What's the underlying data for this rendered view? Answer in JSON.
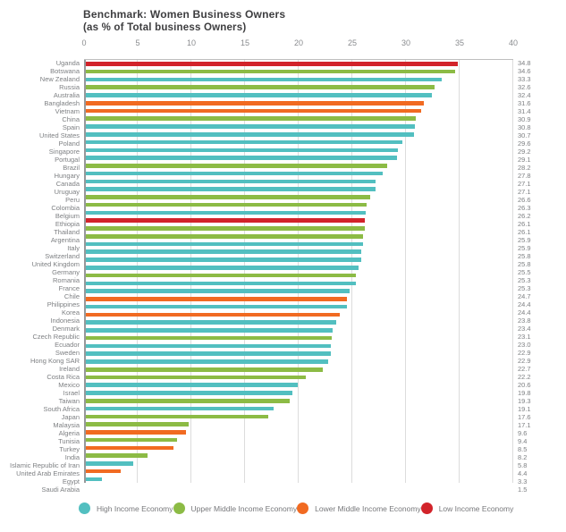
{
  "chart_data": {
    "type": "bar",
    "orientation": "horizontal",
    "title": "Benchmark: Women Business Owners",
    "subtitle": "(as % of Total business Owners)",
    "xlabel": "",
    "ylabel": "",
    "xlim": [
      0,
      40
    ],
    "x_ticks": [
      0,
      5,
      10,
      15,
      20,
      25,
      30,
      35,
      40
    ],
    "grid": true,
    "value_labels": "right",
    "legend_position": "bottom",
    "legend": [
      {
        "key": "high",
        "label": "High Income Economy",
        "color": "#52BFC0"
      },
      {
        "key": "upper_middle",
        "label": "Upper Middle Income Economy",
        "color": "#8CBB45"
      },
      {
        "key": "lower_middle",
        "label": "Lower Middle Income Economy",
        "color": "#F16A21"
      },
      {
        "key": "low",
        "label": "Low Income Economy",
        "color": "#D2232A"
      }
    ],
    "rows": [
      {
        "country": "Uganda",
        "value": 34.8,
        "group": "low"
      },
      {
        "country": "Botswana",
        "value": 34.6,
        "group": "upper_middle"
      },
      {
        "country": "New Zealand",
        "value": 33.3,
        "group": "high"
      },
      {
        "country": "Russia",
        "value": 32.6,
        "group": "upper_middle"
      },
      {
        "country": "Australia",
        "value": 32.4,
        "group": "high"
      },
      {
        "country": "Bangladesh",
        "value": 31.6,
        "group": "lower_middle"
      },
      {
        "country": "Vietnam",
        "value": 31.4,
        "group": "lower_middle"
      },
      {
        "country": "China",
        "value": 30.9,
        "group": "upper_middle"
      },
      {
        "country": "Spain",
        "value": 30.8,
        "group": "high"
      },
      {
        "country": "United States",
        "value": 30.7,
        "group": "high"
      },
      {
        "country": "Poland",
        "value": 29.6,
        "group": "high"
      },
      {
        "country": "Singapore",
        "value": 29.2,
        "group": "high"
      },
      {
        "country": "Portugal",
        "value": 29.1,
        "group": "high"
      },
      {
        "country": "Brazil",
        "value": 28.2,
        "group": "upper_middle"
      },
      {
        "country": "Hungary",
        "value": 27.8,
        "group": "high"
      },
      {
        "country": "Canada",
        "value": 27.1,
        "group": "high"
      },
      {
        "country": "Uruguay",
        "value": 27.1,
        "group": "high"
      },
      {
        "country": "Peru",
        "value": 26.6,
        "group": "upper_middle"
      },
      {
        "country": "Colombia",
        "value": 26.3,
        "group": "upper_middle"
      },
      {
        "country": "Belgium",
        "value": 26.2,
        "group": "high"
      },
      {
        "country": "Ethiopia",
        "value": 26.1,
        "group": "low"
      },
      {
        "country": "Thailand",
        "value": 26.1,
        "group": "upper_middle"
      },
      {
        "country": "Argentina",
        "value": 25.9,
        "group": "upper_middle"
      },
      {
        "country": "Italy",
        "value": 25.9,
        "group": "high"
      },
      {
        "country": "Switzerland",
        "value": 25.8,
        "group": "high"
      },
      {
        "country": "United Kingdom",
        "value": 25.8,
        "group": "high"
      },
      {
        "country": "Germany",
        "value": 25.5,
        "group": "high"
      },
      {
        "country": "Romania",
        "value": 25.3,
        "group": "upper_middle"
      },
      {
        "country": "France",
        "value": 25.3,
        "group": "high"
      },
      {
        "country": "Chile",
        "value": 24.7,
        "group": "high"
      },
      {
        "country": "Philippines",
        "value": 24.4,
        "group": "lower_middle"
      },
      {
        "country": "Korea",
        "value": 24.4,
        "group": "high"
      },
      {
        "country": "Indonesia",
        "value": 23.8,
        "group": "lower_middle"
      },
      {
        "country": "Denmark",
        "value": 23.4,
        "group": "high"
      },
      {
        "country": "Czech Republic",
        "value": 23.1,
        "group": "high"
      },
      {
        "country": "Ecuador",
        "value": 23.0,
        "group": "upper_middle"
      },
      {
        "country": "Sweden",
        "value": 22.9,
        "group": "high"
      },
      {
        "country": "Hong Kong SAR",
        "value": 22.9,
        "group": "high"
      },
      {
        "country": "Ireland",
        "value": 22.7,
        "group": "high"
      },
      {
        "country": "Costa Rica",
        "value": 22.2,
        "group": "upper_middle"
      },
      {
        "country": "Mexico",
        "value": 20.6,
        "group": "upper_middle"
      },
      {
        "country": "Israel",
        "value": 19.8,
        "group": "high"
      },
      {
        "country": "Taiwan",
        "value": 19.3,
        "group": "high"
      },
      {
        "country": "South Africa",
        "value": 19.1,
        "group": "upper_middle"
      },
      {
        "country": "Japan",
        "value": 17.6,
        "group": "high"
      },
      {
        "country": "Malaysia",
        "value": 17.1,
        "group": "upper_middle"
      },
      {
        "country": "Algeria",
        "value": 9.6,
        "group": "upper_middle"
      },
      {
        "country": "Tunisia",
        "value": 9.4,
        "group": "lower_middle"
      },
      {
        "country": "Turkey",
        "value": 8.5,
        "group": "upper_middle"
      },
      {
        "country": "India",
        "value": 8.2,
        "group": "lower_middle"
      },
      {
        "country": "Islamic Republic of Iran",
        "value": 5.8,
        "group": "upper_middle"
      },
      {
        "country": "United Arab Emirates",
        "value": 4.4,
        "group": "high"
      },
      {
        "country": "Egypt",
        "value": 3.3,
        "group": "lower_middle"
      },
      {
        "country": "Saudi Arabia",
        "value": 1.5,
        "group": "high"
      }
    ]
  }
}
